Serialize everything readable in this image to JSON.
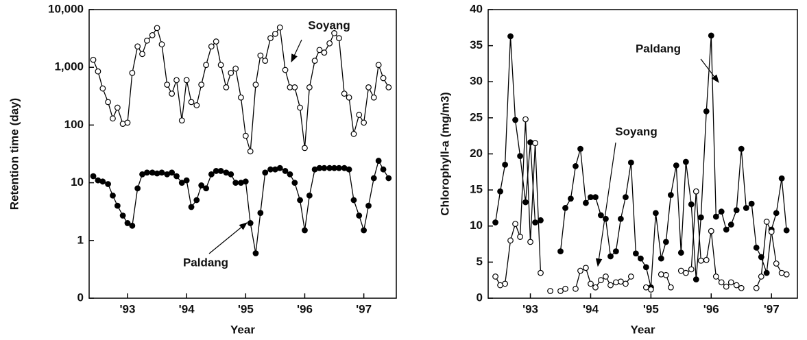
{
  "chart_data": [
    {
      "type": "line",
      "y_label": "Retention time (day)",
      "x_label": "Year",
      "log_y": true,
      "xlim": [
        1992.35,
        1997.55
      ],
      "ylim": [
        0.1,
        10000
      ],
      "xticks": [
        {
          "value": 1993,
          "label": "'93"
        },
        {
          "value": 1994,
          "label": "'94"
        },
        {
          "value": 1995,
          "label": "'95"
        },
        {
          "value": 1996,
          "label": "'96"
        },
        {
          "value": 1997,
          "label": "'97"
        }
      ],
      "yticks": [
        {
          "value": 0.1,
          "label": "0"
        },
        1,
        10,
        100,
        {
          "value": 1000,
          "label": "1,000"
        },
        {
          "value": 10000,
          "label": "10,000"
        }
      ],
      "x": [
        1992.42,
        1992.5,
        1992.58,
        1992.67,
        1992.75,
        1992.83,
        1992.92,
        1993.0,
        1993.08,
        1993.17,
        1993.25,
        1993.33,
        1993.42,
        1993.5,
        1993.58,
        1993.67,
        1993.75,
        1993.83,
        1993.92,
        1994.0,
        1994.08,
        1994.17,
        1994.25,
        1994.33,
        1994.42,
        1994.5,
        1994.58,
        1994.67,
        1994.75,
        1994.83,
        1994.92,
        1995.0,
        1995.08,
        1995.17,
        1995.25,
        1995.33,
        1995.42,
        1995.5,
        1995.58,
        1995.67,
        1995.75,
        1995.83,
        1995.92,
        1996.0,
        1996.08,
        1996.17,
        1996.25,
        1996.33,
        1996.42,
        1996.5,
        1996.58,
        1996.67,
        1996.75,
        1996.83,
        1996.92,
        1997.0,
        1997.08,
        1997.17,
        1997.25,
        1997.33,
        1997.42
      ],
      "series": [
        {
          "name": "Soyang",
          "color": "#000000",
          "fill": "#ffffff",
          "values": [
            1350,
            850,
            430,
            250,
            130,
            200,
            105,
            110,
            800,
            2300,
            1700,
            2900,
            3600,
            4800,
            2500,
            500,
            350,
            600,
            120,
            600,
            250,
            220,
            500,
            1100,
            2300,
            2800,
            1100,
            450,
            800,
            950,
            300,
            65,
            35,
            500,
            1600,
            1300,
            3200,
            3800,
            4900,
            900,
            450,
            450,
            200,
            40,
            450,
            1300,
            2000,
            1800,
            2600,
            3900,
            3200,
            350,
            300,
            70,
            150,
            110,
            450,
            300,
            1100,
            650,
            450
          ]
        },
        {
          "name": "Paldang",
          "color": "#000000",
          "fill": "#000000",
          "values": [
            13,
            11,
            10.5,
            9.5,
            6,
            4,
            2.7,
            2,
            1.8,
            8,
            14,
            15,
            15,
            14.5,
            15,
            14,
            15,
            13,
            10,
            11,
            3.8,
            5,
            9,
            8,
            14,
            16,
            16,
            15,
            14,
            10,
            10,
            10.5,
            2,
            0.6,
            3,
            15,
            17,
            17,
            18,
            16,
            14,
            10,
            5,
            1.5,
            6,
            17,
            18,
            18,
            18,
            18,
            18,
            18,
            17,
            5,
            2.7,
            1.5,
            4,
            12,
            24,
            17,
            12
          ]
        }
      ]
    },
    {
      "type": "line",
      "y_label": "Chlorophyll-a (mg/m3)",
      "x_label": "Year",
      "log_y": false,
      "xlim": [
        1992.3,
        1997.43
      ],
      "ylim": [
        0,
        40
      ],
      "xticks": [
        {
          "value": 1993,
          "label": "'93"
        },
        {
          "value": 1994,
          "label": "'94"
        },
        {
          "value": 1995,
          "label": "'95"
        },
        {
          "value": 1996,
          "label": "'96"
        },
        {
          "value": 1997,
          "label": "'97"
        }
      ],
      "yticks": [
        0,
        5,
        10,
        15,
        20,
        25,
        30,
        35,
        40
      ],
      "x": [
        1992.42,
        1992.5,
        1992.58,
        1992.67,
        1992.75,
        1992.83,
        1992.92,
        1993.0,
        1993.08,
        1993.17,
        1993.25,
        1993.33,
        1993.42,
        1993.5,
        1993.58,
        1993.67,
        1993.75,
        1993.83,
        1993.92,
        1994.0,
        1994.08,
        1994.17,
        1994.25,
        1994.33,
        1994.42,
        1994.5,
        1994.58,
        1994.67,
        1994.75,
        1994.83,
        1994.92,
        1995.0,
        1995.08,
        1995.17,
        1995.25,
        1995.33,
        1995.42,
        1995.5,
        1995.58,
        1995.67,
        1995.75,
        1995.83,
        1995.92,
        1996.0,
        1996.08,
        1996.17,
        1996.25,
        1996.33,
        1996.42,
        1996.5,
        1996.58,
        1996.67,
        1996.75,
        1996.83,
        1996.92,
        1997.0,
        1997.08,
        1997.17,
        1997.25
      ],
      "series": [
        {
          "name": "Paldang",
          "color": "#000000",
          "fill": "#000000",
          "values": [
            10.5,
            14.8,
            18.5,
            36.3,
            24.7,
            19.7,
            13.3,
            21.6,
            10.5,
            10.8,
            null,
            null,
            null,
            6.5,
            12.5,
            13.8,
            18.3,
            20.7,
            13.2,
            14,
            14,
            11.5,
            11,
            5.8,
            6.5,
            11,
            14,
            18.8,
            6.2,
            5.5,
            4.3,
            1.5,
            11.8,
            5.5,
            7.8,
            14.3,
            18.4,
            6.3,
            18.9,
            13,
            2.6,
            11.2,
            25.9,
            36.4,
            11.3,
            12,
            9.5,
            10.2,
            12.2,
            20.7,
            12.5,
            13.1,
            7,
            5.7,
            3.5,
            9.5,
            11.8,
            16.6,
            9.4
          ]
        },
        {
          "name": "Soyang",
          "color": "#000000",
          "fill": "#ffffff",
          "values": [
            3,
            1.8,
            2,
            8,
            10.3,
            8.5,
            24.8,
            7.8,
            21.5,
            3.5,
            null,
            1,
            null,
            1,
            1.3,
            null,
            1.3,
            3.8,
            4.2,
            2,
            1.5,
            2.5,
            3,
            1.8,
            2.2,
            2.3,
            2,
            3,
            null,
            null,
            1.5,
            1.2,
            null,
            3.3,
            3.2,
            1.5,
            null,
            3.8,
            3.5,
            4,
            14.8,
            5.2,
            5.3,
            9.3,
            3,
            2.2,
            1.6,
            2.2,
            1.8,
            1.4,
            null,
            null,
            1.4,
            3,
            10.6,
            9.2,
            4.8,
            3.5,
            3.3
          ]
        }
      ]
    }
  ]
}
